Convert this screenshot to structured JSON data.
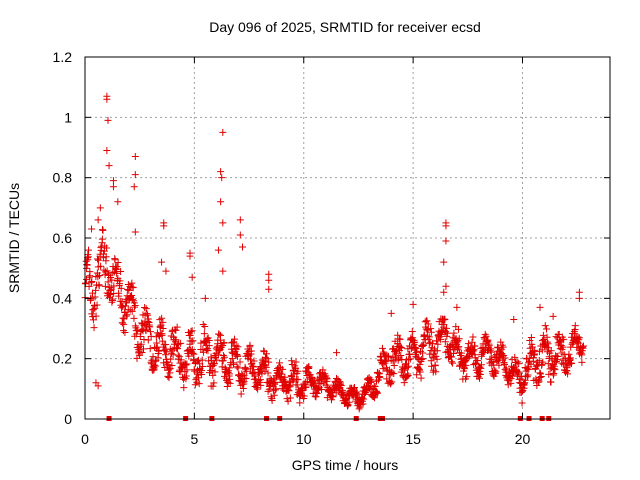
{
  "chart_data": {
    "type": "scatter",
    "title": "Day 096 of 2025, SRMTID for receiver ecsd",
    "xlabel": "GPS time / hours",
    "ylabel": "SRMTID / TECUs",
    "xlim": [
      0,
      24
    ],
    "ylim": [
      0,
      1.2
    ],
    "xticks": [
      0,
      5,
      10,
      15,
      20
    ],
    "xtick_labels": [
      "0",
      "5",
      "10",
      "15",
      "20"
    ],
    "yticks": [
      0,
      0.2,
      0.4,
      0.6,
      0.8,
      1.0,
      1.2
    ],
    "ytick_labels": [
      "0",
      "0.2",
      "0.4",
      "0.6",
      "0.8",
      "1",
      "1.2"
    ],
    "grid": true,
    "marker": "+",
    "color": "#e00000",
    "series": [
      {
        "name": "SRMTID",
        "envelope": [
          [
            0.0,
            0.3,
            0.55
          ],
          [
            0.5,
            0.3,
            0.6
          ],
          [
            1.0,
            0.4,
            0.65
          ],
          [
            1.5,
            0.3,
            0.55
          ],
          [
            2.0,
            0.25,
            0.5
          ],
          [
            2.5,
            0.18,
            0.4
          ],
          [
            3.0,
            0.15,
            0.38
          ],
          [
            3.5,
            0.12,
            0.35
          ],
          [
            4.0,
            0.12,
            0.32
          ],
          [
            4.5,
            0.1,
            0.3
          ],
          [
            5.0,
            0.1,
            0.3
          ],
          [
            5.5,
            0.1,
            0.32
          ],
          [
            6.0,
            0.1,
            0.3
          ],
          [
            6.5,
            0.1,
            0.28
          ],
          [
            7.0,
            0.08,
            0.26
          ],
          [
            7.5,
            0.08,
            0.25
          ],
          [
            8.0,
            0.08,
            0.24
          ],
          [
            8.5,
            0.06,
            0.22
          ],
          [
            9.0,
            0.05,
            0.2
          ],
          [
            9.5,
            0.05,
            0.2
          ],
          [
            10.0,
            0.05,
            0.18
          ],
          [
            10.5,
            0.06,
            0.18
          ],
          [
            11.0,
            0.06,
            0.16
          ],
          [
            11.5,
            0.05,
            0.14
          ],
          [
            12.0,
            0.04,
            0.12
          ],
          [
            12.5,
            0.03,
            0.1
          ],
          [
            13.0,
            0.05,
            0.14
          ],
          [
            13.5,
            0.08,
            0.22
          ],
          [
            14.0,
            0.1,
            0.3
          ],
          [
            14.5,
            0.12,
            0.28
          ],
          [
            15.0,
            0.12,
            0.3
          ],
          [
            15.5,
            0.14,
            0.33
          ],
          [
            16.0,
            0.15,
            0.35
          ],
          [
            16.5,
            0.2,
            0.35
          ],
          [
            17.0,
            0.14,
            0.32
          ],
          [
            17.5,
            0.12,
            0.28
          ],
          [
            18.0,
            0.12,
            0.28
          ],
          [
            18.5,
            0.14,
            0.3
          ],
          [
            19.0,
            0.12,
            0.26
          ],
          [
            19.5,
            0.1,
            0.22
          ],
          [
            20.0,
            0.05,
            0.2
          ],
          [
            20.5,
            0.1,
            0.3
          ],
          [
            21.0,
            0.1,
            0.32
          ],
          [
            21.5,
            0.12,
            0.3
          ],
          [
            22.0,
            0.14,
            0.28
          ],
          [
            22.5,
            0.18,
            0.33
          ],
          [
            22.8,
            0.18,
            0.33
          ]
        ],
        "spikes": [
          [
            1.0,
            1.07
          ],
          [
            1.0,
            1.06
          ],
          [
            1.05,
            0.99
          ],
          [
            1.0,
            0.89
          ],
          [
            1.1,
            0.84
          ],
          [
            1.3,
            0.79
          ],
          [
            1.3,
            0.77
          ],
          [
            2.3,
            0.87
          ],
          [
            2.3,
            0.81
          ],
          [
            2.25,
            0.77
          ],
          [
            2.3,
            0.62
          ],
          [
            3.6,
            0.65
          ],
          [
            3.6,
            0.64
          ],
          [
            3.5,
            0.52
          ],
          [
            3.7,
            0.49
          ],
          [
            4.8,
            0.55
          ],
          [
            4.8,
            0.54
          ],
          [
            4.9,
            0.47
          ],
          [
            6.3,
            0.95
          ],
          [
            6.2,
            0.82
          ],
          [
            6.25,
            0.8
          ],
          [
            6.2,
            0.72
          ],
          [
            6.3,
            0.65
          ],
          [
            6.1,
            0.56
          ],
          [
            6.3,
            0.49
          ],
          [
            7.1,
            0.66
          ],
          [
            7.1,
            0.61
          ],
          [
            7.2,
            0.57
          ],
          [
            8.4,
            0.48
          ],
          [
            8.4,
            0.46
          ],
          [
            8.4,
            0.43
          ],
          [
            16.5,
            0.65
          ],
          [
            16.5,
            0.64
          ],
          [
            16.5,
            0.59
          ],
          [
            16.4,
            0.52
          ],
          [
            16.5,
            0.44
          ],
          [
            16.4,
            0.42
          ],
          [
            22.6,
            0.42
          ],
          [
            22.6,
            0.4
          ],
          [
            20.8,
            0.37
          ],
          [
            0.1,
            0.51
          ],
          [
            0.3,
            0.63
          ],
          [
            0.6,
            0.66
          ],
          [
            1.5,
            0.72
          ],
          [
            0.7,
            0.7
          ],
          [
            0.5,
            0.12
          ],
          [
            0.6,
            0.11
          ],
          [
            5.5,
            0.4
          ],
          [
            11.5,
            0.22
          ],
          [
            14.0,
            0.35
          ],
          [
            15.0,
            0.38
          ],
          [
            17.0,
            0.37
          ],
          [
            19.6,
            0.33
          ],
          [
            21.4,
            0.34
          ]
        ],
        "gap_markers_x": [
          1.1,
          4.6,
          5.8,
          8.3,
          8.9,
          12.4,
          13.5,
          13.6,
          19.9,
          20.3,
          20.9,
          21.2
        ]
      }
    ]
  }
}
